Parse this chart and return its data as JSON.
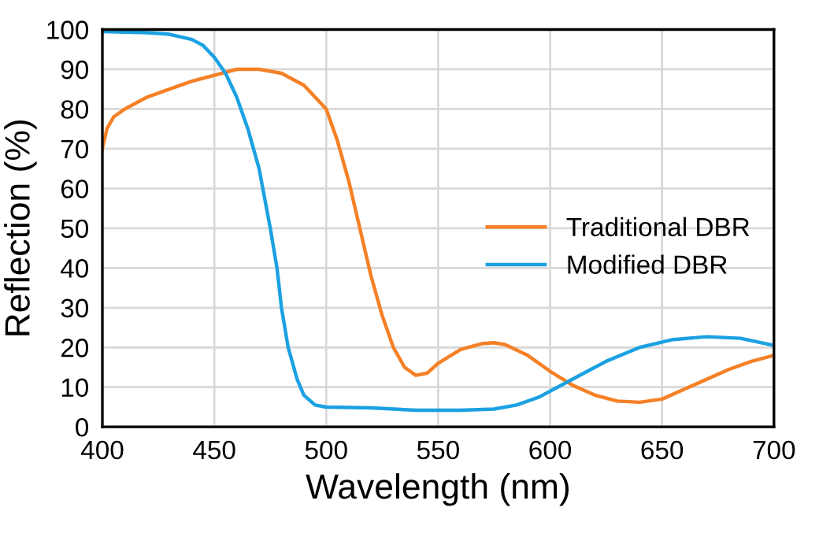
{
  "chart_data": {
    "type": "line",
    "xlabel": "Wavelength (nm)",
    "ylabel": "Reflection (%)",
    "xlim": [
      400,
      700
    ],
    "ylim": [
      0,
      100
    ],
    "xticks": [
      400,
      450,
      500,
      550,
      600,
      650,
      700
    ],
    "yticks": [
      0,
      10,
      20,
      30,
      40,
      50,
      60,
      70,
      80,
      90,
      100
    ],
    "grid": true,
    "legend": "right",
    "marker": "none",
    "line_style": "solid",
    "series": [
      {
        "name": "Traditional DBR",
        "color": "#f58025",
        "x": [
          400,
          402,
          405,
          410,
          420,
          430,
          440,
          450,
          460,
          470,
          480,
          490,
          495,
          500,
          505,
          510,
          515,
          520,
          525,
          530,
          535,
          540,
          545,
          550,
          560,
          570,
          575,
          580,
          590,
          600,
          610,
          620,
          630,
          640,
          650,
          660,
          670,
          680,
          690,
          700
        ],
        "values": [
          70,
          75,
          78,
          80,
          83,
          85,
          87,
          88.5,
          90,
          90,
          89,
          86,
          83,
          80,
          72,
          62,
          50,
          38,
          28,
          20,
          15,
          13,
          13.5,
          16,
          19.5,
          21,
          21.2,
          20.7,
          18,
          14,
          10.5,
          8,
          6.5,
          6.2,
          7,
          9.5,
          12,
          14.5,
          16.5,
          18
        ]
      },
      {
        "name": "Modified DBR",
        "color": "#1ba1e2",
        "x": [
          400,
          420,
          430,
          440,
          445,
          450,
          455,
          460,
          465,
          470,
          475,
          478,
          480,
          483,
          487,
          490,
          495,
          500,
          520,
          540,
          560,
          575,
          585,
          595,
          605,
          615,
          625,
          640,
          655,
          670,
          685,
          700
        ],
        "values": [
          99.5,
          99.2,
          98.8,
          97.5,
          96,
          93,
          89,
          83,
          75,
          65,
          50,
          40,
          30,
          20,
          12,
          8,
          5.5,
          5,
          4.8,
          4.2,
          4.2,
          4.5,
          5.5,
          7.5,
          10.5,
          13.5,
          16.5,
          20,
          22,
          22.7,
          22.3,
          20.5
        ]
      }
    ]
  }
}
